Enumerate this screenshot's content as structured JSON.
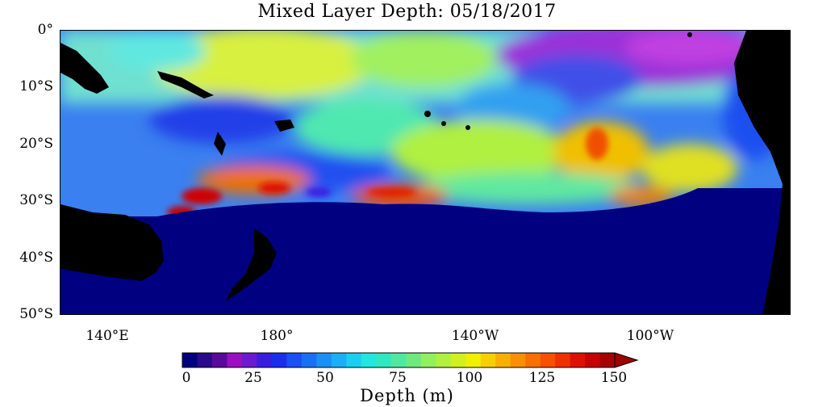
{
  "title": "Mixed Layer Depth: 05/18/2017",
  "axes": {
    "y_ticks": [
      {
        "label": "0°",
        "lat": 0
      },
      {
        "label": "10°S",
        "lat": -10
      },
      {
        "label": "20°S",
        "lat": -20
      },
      {
        "label": "30°S",
        "lat": -30
      },
      {
        "label": "40°S",
        "lat": -40
      },
      {
        "label": "50°S",
        "lat": -50
      }
    ],
    "x_ticks": [
      {
        "label": "140°E",
        "lon": 140
      },
      {
        "label": "180°",
        "lon": 180
      },
      {
        "label": "140°W",
        "lon": 220
      },
      {
        "label": "100°W",
        "lon": 260
      }
    ],
    "lon_range": [
      131,
      278
    ],
    "lat_range": [
      -50,
      0
    ]
  },
  "colorbar": {
    "title": "Depth (m)",
    "min": 0,
    "max": 150,
    "extend": "max",
    "ticks": [
      "0",
      "25",
      "50",
      "75",
      "100",
      "125",
      "150"
    ],
    "colors": [
      "#000080",
      "#2a0a8a",
      "#5a0a9a",
      "#9a10c0",
      "#6a1ad0",
      "#3a1ee0",
      "#1a2ef0",
      "#1a50f5",
      "#1a70f5",
      "#1a90f5",
      "#1ab0f5",
      "#1ad0f0",
      "#20e8e0",
      "#30e8c0",
      "#50e8a0",
      "#70e880",
      "#90f060",
      "#b0f040",
      "#d0f020",
      "#f0f000",
      "#f8d000",
      "#f8b000",
      "#f89000",
      "#f87000",
      "#f85000",
      "#f03000",
      "#e01000",
      "#c80000",
      "#a80000"
    ],
    "over_color": "#a00000"
  },
  "colors": {
    "land": "#000000",
    "deep_blue": "#000080",
    "background": "#ffffff"
  }
}
